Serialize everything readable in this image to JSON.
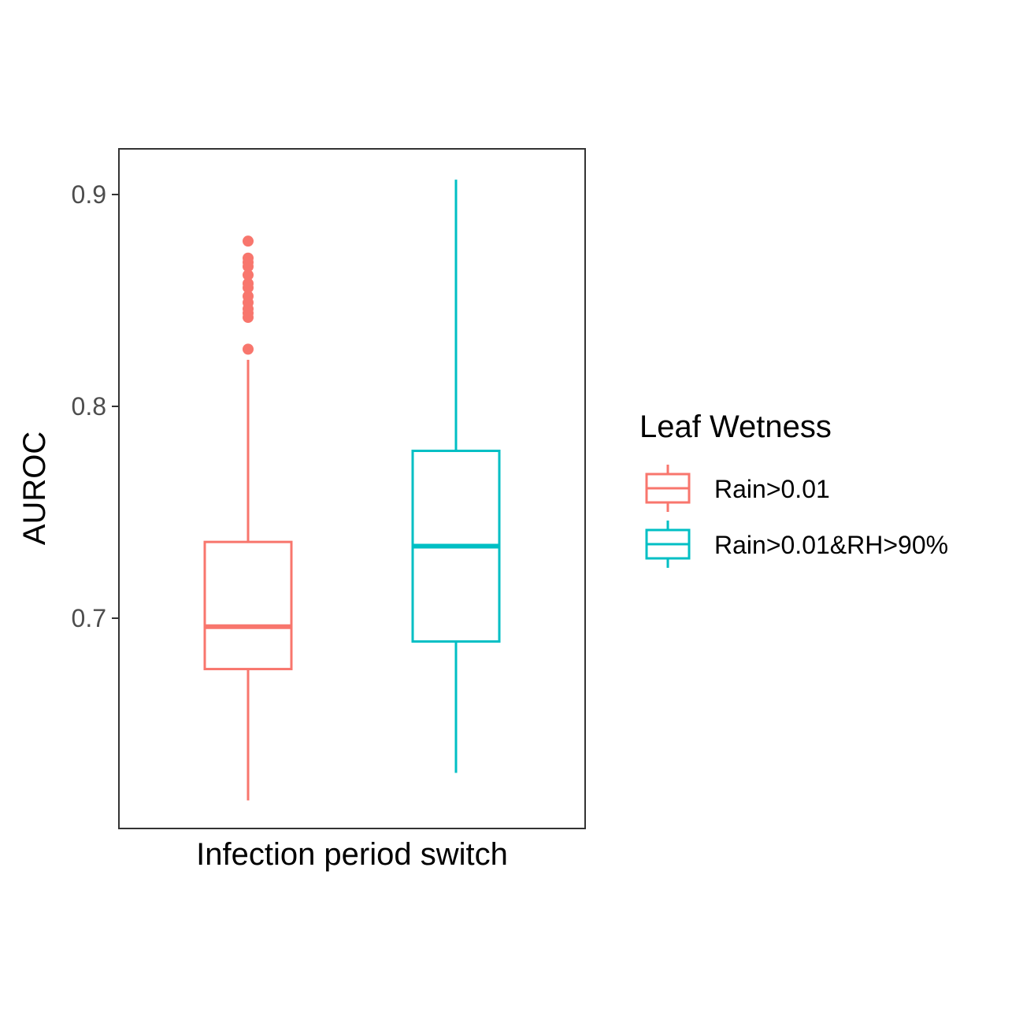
{
  "chart_data": {
    "type": "boxplot",
    "xlabel": "Infection period switch",
    "ylabel": "AUROC",
    "ylim": [
      0.6,
      0.922
    ],
    "y_ticks": [
      0.7,
      0.8,
      0.9
    ],
    "y_tick_labels": [
      "0.7",
      "0.8",
      "0.9"
    ],
    "grid": false,
    "legend": {
      "title": "Leaf Wetness",
      "placement": "right"
    },
    "series": [
      {
        "name": "Rain>0.01",
        "color": "#F8766D",
        "whisker_low": 0.614,
        "q1": 0.676,
        "median": 0.696,
        "q3": 0.736,
        "whisker_high": 0.822,
        "outliers": [
          0.827,
          0.842,
          0.844,
          0.846,
          0.849,
          0.852,
          0.856,
          0.858,
          0.862,
          0.866,
          0.868,
          0.87,
          0.878
        ]
      },
      {
        "name": "Rain>0.01&RH>90%",
        "color": "#00BFC4",
        "whisker_low": 0.627,
        "q1": 0.689,
        "median": 0.734,
        "q3": 0.779,
        "whisker_high": 0.907,
        "outliers": []
      }
    ]
  }
}
